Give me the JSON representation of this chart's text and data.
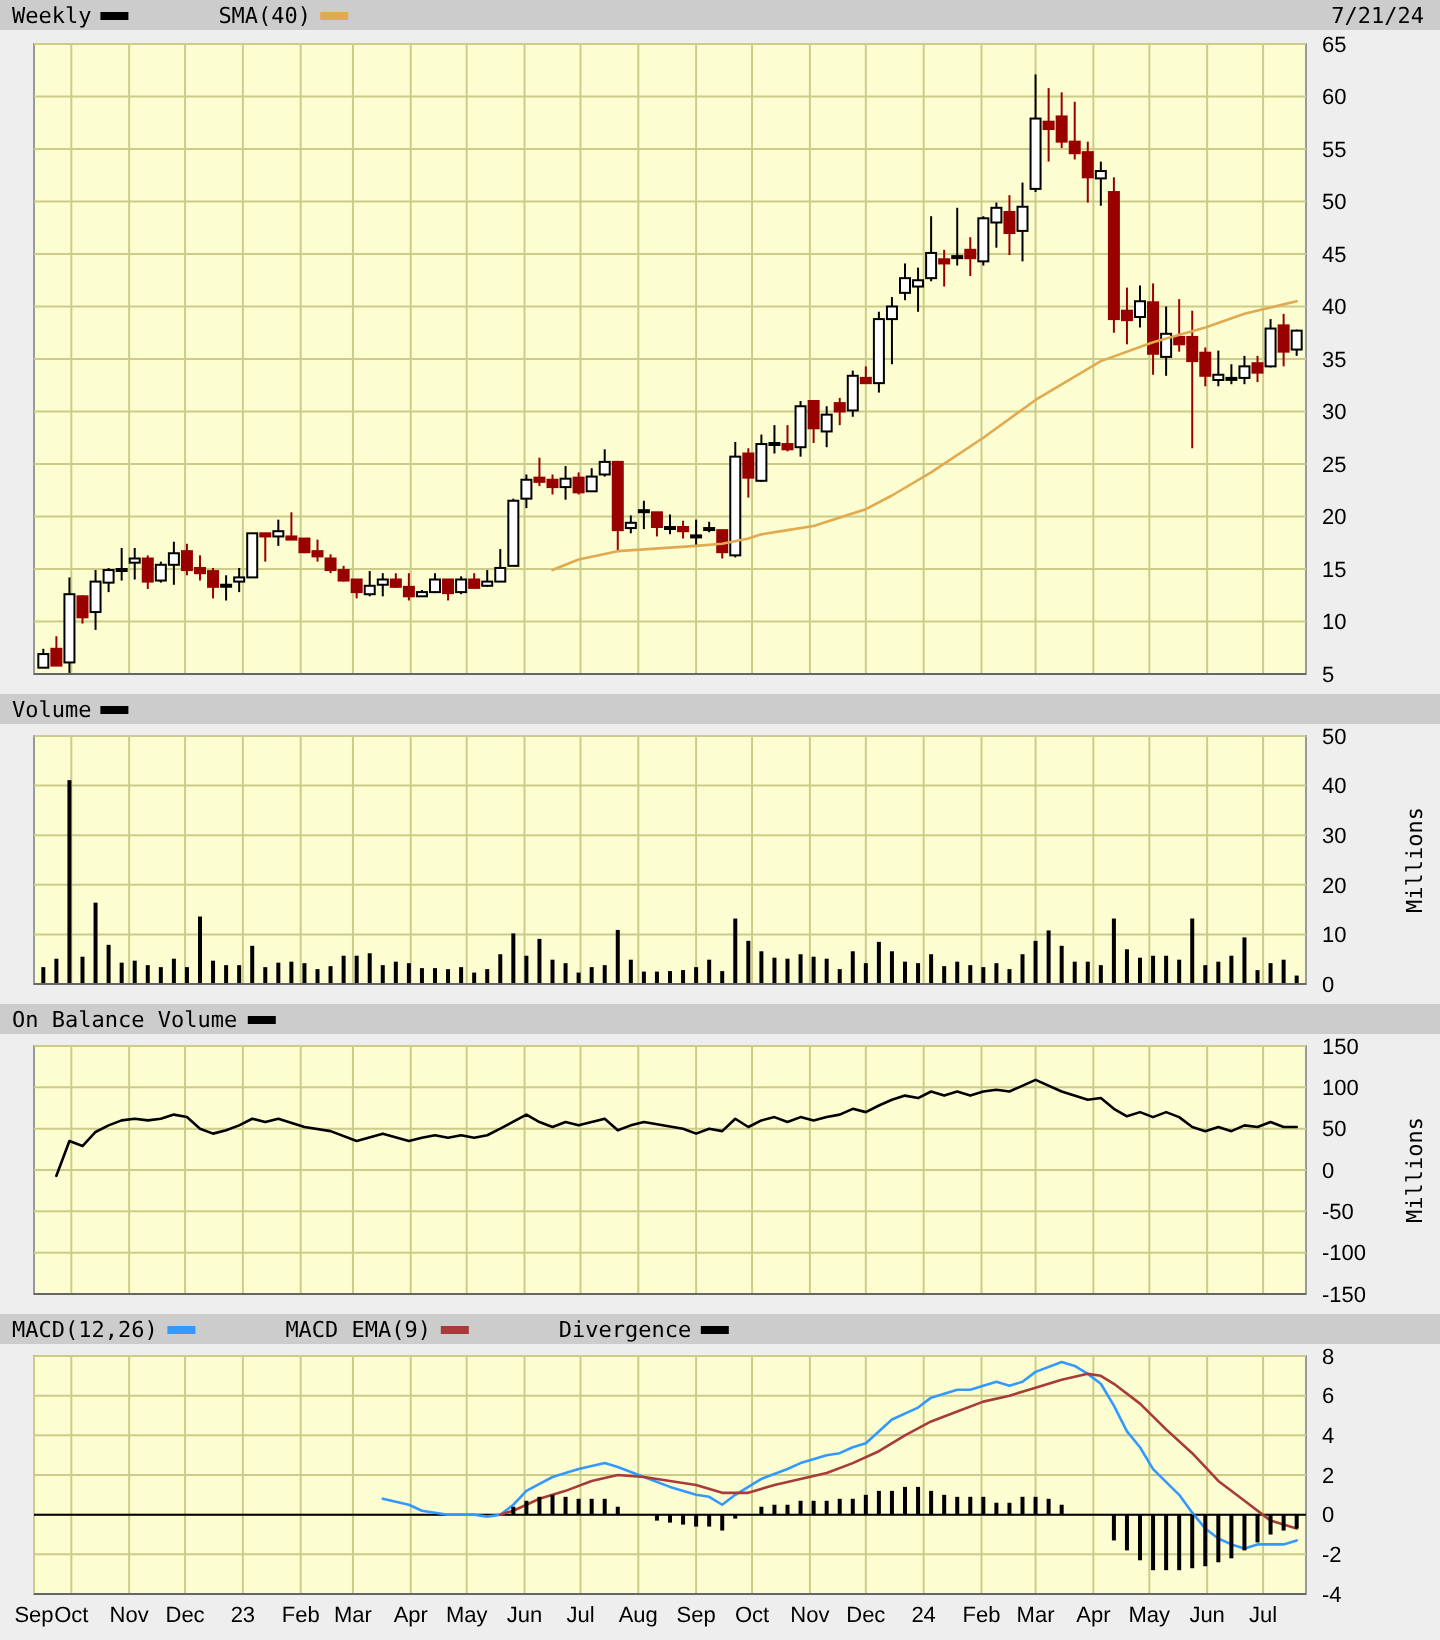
{
  "chart_data": [
    {
      "type": "candlestick",
      "legend": "top left",
      "grid": true,
      "tick_labels": "y",
      "annotations": [
        "7/21/24"
      ],
      "x": [
        "2022-09-16",
        "2022-09-23",
        "2022-09-30",
        "2022-10-07",
        "2022-10-14",
        "2022-10-21",
        "2022-10-28",
        "2022-11-04",
        "2022-11-11",
        "2022-11-18",
        "2022-11-25",
        "2022-12-02",
        "2022-12-09",
        "2022-12-16",
        "2022-12-23",
        "2022-12-30",
        "2023-01-06",
        "2023-01-13",
        "2023-01-20",
        "2023-01-27",
        "2023-02-03",
        "2023-02-10",
        "2023-02-17",
        "2023-02-24",
        "2023-03-03",
        "2023-03-10",
        "2023-03-17",
        "2023-03-24",
        "2023-03-31",
        "2023-04-07",
        "2023-04-14",
        "2023-04-21",
        "2023-04-28",
        "2023-05-05",
        "2023-05-12",
        "2023-05-19",
        "2023-05-26",
        "2023-06-02",
        "2023-06-09",
        "2023-06-16",
        "2023-06-23",
        "2023-06-30",
        "2023-07-07",
        "2023-07-14",
        "2023-07-21",
        "2023-07-28",
        "2023-08-04",
        "2023-08-11",
        "2023-08-18",
        "2023-08-25",
        "2023-09-01",
        "2023-09-08",
        "2023-09-15",
        "2023-09-22",
        "2023-09-29",
        "2023-10-06",
        "2023-10-13",
        "2023-10-20",
        "2023-10-27",
        "2023-11-03",
        "2023-11-10",
        "2023-11-17",
        "2023-11-24",
        "2023-12-01",
        "2023-12-08",
        "2023-12-15",
        "2023-12-22",
        "2023-12-29",
        "2024-01-05",
        "2024-01-12",
        "2024-01-19",
        "2024-01-26",
        "2024-02-02",
        "2024-02-09",
        "2024-02-16",
        "2024-02-23",
        "2024-03-01",
        "2024-03-08",
        "2024-03-15",
        "2024-03-22",
        "2024-03-29",
        "2024-04-05",
        "2024-04-12",
        "2024-04-19",
        "2024-04-26",
        "2024-05-03",
        "2024-05-10",
        "2024-05-17",
        "2024-05-24",
        "2024-05-31",
        "2024-06-07",
        "2024-06-14",
        "2024-06-21",
        "2024-06-28",
        "2024-07-05",
        "2024-07-12",
        "2024-07-19"
      ],
      "xlim": [
        "2022-09-11",
        "2024-07-24"
      ],
      "xticks": [
        {
          "value": "2022-10-01",
          "label": null
        },
        {
          "value": "2022-11-01",
          "label": null
        },
        {
          "value": "2022-12-01",
          "label": null
        },
        {
          "value": "2023-01-01",
          "label": null
        },
        {
          "value": "2023-02-01",
          "label": null
        },
        {
          "value": "2023-03-01",
          "label": null
        },
        {
          "value": "2023-04-01",
          "label": null
        },
        {
          "value": "2023-05-01",
          "label": null
        },
        {
          "value": "2023-06-01",
          "label": null
        },
        {
          "value": "2023-07-01",
          "label": null
        },
        {
          "value": "2023-08-01",
          "label": null
        },
        {
          "value": "2023-09-01",
          "label": null
        },
        {
          "value": "2023-10-01",
          "label": null
        },
        {
          "value": "2023-11-01",
          "label": null
        },
        {
          "value": "2023-12-01",
          "label": null
        },
        {
          "value": "2024-01-01",
          "label": null
        },
        {
          "value": "2024-02-01",
          "label": null
        },
        {
          "value": "2024-03-01",
          "label": null
        },
        {
          "value": "2024-04-01",
          "label": null
        },
        {
          "value": "2024-05-01",
          "label": null
        },
        {
          "value": "2024-06-01",
          "label": null
        },
        {
          "value": "2024-07-01",
          "label": null
        }
      ],
      "ylim": [
        5,
        65
      ],
      "yticks": [
        5,
        10,
        15,
        20,
        25,
        30,
        35,
        40,
        45,
        50,
        55,
        60,
        65
      ],
      "series": [
        {
          "name": "Weekly",
          "color": "#000000",
          "colors": [
            "#000000",
            "#990000",
            "#000000",
            "#990000",
            "#000000",
            "#000000",
            "#000000",
            "#000000",
            "#990000",
            "#000000",
            "#000000",
            "#990000",
            "#990000",
            "#990000",
            "#000000",
            "#000000",
            "#000000",
            "#990000",
            "#000000",
            "#990000",
            "#990000",
            "#990000",
            "#990000",
            "#990000",
            "#990000",
            "#000000",
            "#000000",
            "#990000",
            "#990000",
            "#000000",
            "#000000",
            "#990000",
            "#000000",
            "#990000",
            "#000000",
            "#000000",
            "#000000",
            "#000000",
            "#990000",
            "#990000",
            "#000000",
            "#990000",
            "#000000",
            "#000000",
            "#990000",
            "#000000",
            "#000000",
            "#990000",
            "#000000",
            "#990000",
            "#000000",
            "#000000",
            "#990000",
            "#000000",
            "#990000",
            "#000000",
            "#000000",
            "#990000",
            "#000000",
            "#990000",
            "#000000",
            "#990000",
            "#000000",
            "#990000",
            "#000000",
            "#000000",
            "#000000",
            "#000000",
            "#000000",
            "#990000",
            "#000000",
            "#990000",
            "#000000",
            "#000000",
            "#990000",
            "#000000",
            "#000000",
            "#990000",
            "#990000",
            "#990000",
            "#990000",
            "#000000",
            "#990000",
            "#990000",
            "#000000",
            "#990000",
            "#000000",
            "#990000",
            "#990000",
            "#990000",
            "#000000",
            "#000000",
            "#000000",
            "#990000",
            "#000000",
            "#990000",
            "#000000"
          ],
          "ohlc": [
            [
              5.6,
              7.4,
              5.6,
              6.9
            ],
            [
              7.4,
              8.6,
              5.8,
              5.8
            ],
            [
              6.1,
              14.2,
              5.1,
              12.6
            ],
            [
              12.4,
              12.5,
              9.8,
              10.4
            ],
            [
              10.9,
              14.9,
              9.2,
              13.8
            ],
            [
              13.7,
              15.1,
              12.8,
              14.9
            ],
            [
              14.9,
              17.0,
              13.9,
              15.0
            ],
            [
              15.6,
              17.0,
              14.0,
              16.0
            ],
            [
              16.0,
              16.3,
              13.1,
              13.8
            ],
            [
              13.9,
              15.7,
              13.7,
              15.4
            ],
            [
              15.4,
              17.6,
              13.5,
              16.5
            ],
            [
              16.7,
              17.4,
              14.4,
              14.9
            ],
            [
              15.1,
              16.3,
              13.9,
              14.6
            ],
            [
              14.8,
              15.1,
              12.2,
              13.3
            ],
            [
              13.5,
              14.4,
              12.0,
              13.5
            ],
            [
              13.8,
              15.1,
              12.8,
              14.2
            ],
            [
              14.2,
              18.4,
              14.2,
              18.4
            ],
            [
              18.4,
              18.4,
              15.7,
              18.1
            ],
            [
              18.1,
              19.7,
              17.2,
              18.6
            ],
            [
              18.1,
              20.4,
              17.8,
              17.8
            ],
            [
              17.9,
              17.9,
              16.5,
              16.6
            ],
            [
              16.7,
              17.8,
              15.7,
              16.2
            ],
            [
              16.0,
              16.4,
              14.6,
              14.9
            ],
            [
              14.9,
              15.3,
              13.8,
              13.9
            ],
            [
              14.0,
              14.0,
              12.2,
              12.8
            ],
            [
              12.6,
              14.8,
              12.4,
              13.4
            ],
            [
              13.5,
              14.6,
              12.4,
              14.0
            ],
            [
              14.0,
              14.6,
              13.2,
              13.3
            ],
            [
              13.3,
              14.6,
              12.0,
              12.4
            ],
            [
              12.4,
              13.0,
              12.4,
              12.8
            ],
            [
              12.8,
              14.6,
              12.7,
              14.0
            ],
            [
              14.0,
              14.0,
              12.0,
              12.7
            ],
            [
              12.8,
              14.3,
              12.6,
              14.0
            ],
            [
              14.0,
              14.6,
              13.2,
              13.2
            ],
            [
              13.4,
              14.9,
              13.3,
              13.8
            ],
            [
              13.8,
              16.9,
              13.8,
              15.1
            ],
            [
              15.3,
              21.7,
              15.3,
              21.5
            ],
            [
              21.7,
              24.0,
              20.8,
              23.5
            ],
            [
              23.7,
              25.6,
              22.9,
              23.3
            ],
            [
              23.5,
              24.0,
              22.1,
              22.8
            ],
            [
              22.8,
              24.8,
              21.6,
              23.6
            ],
            [
              23.7,
              24.2,
              22.1,
              22.3
            ],
            [
              22.4,
              24.6,
              22.4,
              23.8
            ],
            [
              24.0,
              26.4,
              23.8,
              25.2
            ],
            [
              25.2,
              25.3,
              16.7,
              18.7
            ],
            [
              18.9,
              20.1,
              18.4,
              19.4
            ],
            [
              20.5,
              21.5,
              18.8,
              20.6
            ],
            [
              20.4,
              20.4,
              18.1,
              19.0
            ],
            [
              19.0,
              20.2,
              18.3,
              19.0
            ],
            [
              19.0,
              19.6,
              17.9,
              18.6
            ],
            [
              18.1,
              19.7,
              17.1,
              18.2
            ],
            [
              18.8,
              19.5,
              18.5,
              18.9
            ],
            [
              18.7,
              18.7,
              16.0,
              16.6
            ],
            [
              16.3,
              27.1,
              16.1,
              25.7
            ],
            [
              26.0,
              26.5,
              21.8,
              23.7
            ],
            [
              23.4,
              27.8,
              23.3,
              26.9
            ],
            [
              27.0,
              28.7,
              26.0,
              27.0
            ],
            [
              26.9,
              28.7,
              26.2,
              26.4
            ],
            [
              26.6,
              31.0,
              25.7,
              30.5
            ],
            [
              31.0,
              31.0,
              27.0,
              28.4
            ],
            [
              28.1,
              30.5,
              26.6,
              29.7
            ],
            [
              30.8,
              31.3,
              28.7,
              30.0
            ],
            [
              30.1,
              33.9,
              29.5,
              33.4
            ],
            [
              33.2,
              34.3,
              32.7,
              32.7
            ],
            [
              32.7,
              39.5,
              31.8,
              38.8
            ],
            [
              38.8,
              40.9,
              34.5,
              40.0
            ],
            [
              41.3,
              44.1,
              40.6,
              42.7
            ],
            [
              41.9,
              43.7,
              39.5,
              42.5
            ],
            [
              42.7,
              48.6,
              42.4,
              45.1
            ],
            [
              44.5,
              45.4,
              41.9,
              44.1
            ],
            [
              44.8,
              49.4,
              43.9,
              44.8
            ],
            [
              45.4,
              46.6,
              42.9,
              44.6
            ],
            [
              44.3,
              48.6,
              43.9,
              48.4
            ],
            [
              48.0,
              49.9,
              45.6,
              49.4
            ],
            [
              49.0,
              50.6,
              44.9,
              47.0
            ],
            [
              47.2,
              51.8,
              44.3,
              49.5
            ],
            [
              51.2,
              62.1,
              50.9,
              57.9
            ],
            [
              57.6,
              60.8,
              53.8,
              56.9
            ],
            [
              58.1,
              60.4,
              55.1,
              55.7
            ],
            [
              55.7,
              59.5,
              54.0,
              54.6
            ],
            [
              54.7,
              55.7,
              49.9,
              52.3
            ],
            [
              52.2,
              53.8,
              49.6,
              52.9
            ],
            [
              50.9,
              52.3,
              37.5,
              38.8
            ],
            [
              39.6,
              41.8,
              36.4,
              38.7
            ],
            [
              39.0,
              42.0,
              38.0,
              40.5
            ],
            [
              40.4,
              42.2,
              33.5,
              35.5
            ],
            [
              35.2,
              40.0,
              33.4,
              37.4
            ],
            [
              37.1,
              40.7,
              35.7,
              36.4
            ],
            [
              37.1,
              39.6,
              26.5,
              34.8
            ],
            [
              35.6,
              36.1,
              32.4,
              33.4
            ],
            [
              33.0,
              35.8,
              32.4,
              33.5
            ],
            [
              33.2,
              34.5,
              32.6,
              33.2
            ],
            [
              33.2,
              35.3,
              32.6,
              34.3
            ],
            [
              34.6,
              35.3,
              32.8,
              33.7
            ],
            [
              34.3,
              38.8,
              34.2,
              37.9
            ],
            [
              38.2,
              39.3,
              34.3,
              35.7
            ],
            [
              35.9,
              37.8,
              35.3,
              37.7
            ]
          ]
        },
        {
          "name": "SMA(40)",
          "type": "line",
          "color": "#e0aa50",
          "x": [
            "2023-06-16",
            "2023-06-30",
            "2023-07-21",
            "2023-09-01",
            "2023-09-15",
            "2023-09-29",
            "2023-10-06",
            "2023-10-20",
            "2023-11-03",
            "2023-12-01",
            "2023-12-15",
            "2024-01-05",
            "2024-02-02",
            "2024-03-01",
            "2024-04-05",
            "2024-05-03",
            "2024-05-31",
            "2024-06-21",
            "2024-07-19"
          ],
          "values": [
            14.9,
            15.9,
            16.7,
            17.2,
            17.4,
            17.9,
            18.3,
            18.7,
            19.1,
            20.7,
            22.0,
            24.2,
            27.5,
            31.1,
            34.8,
            36.6,
            38.0,
            39.3,
            40.5
          ]
        }
      ]
    },
    {
      "type": "bar",
      "legend": "top left",
      "grid": true,
      "tick_labels": "y",
      "ylabel": "Millions",
      "x": [
        "2022-09-16",
        "2022-09-23",
        "2022-09-30",
        "2022-10-07",
        "2022-10-14",
        "2022-10-21",
        "2022-10-28",
        "2022-11-04",
        "2022-11-11",
        "2022-11-18",
        "2022-11-25",
        "2022-12-02",
        "2022-12-09",
        "2022-12-16",
        "2022-12-23",
        "2022-12-30",
        "2023-01-06",
        "2023-01-13",
        "2023-01-20",
        "2023-01-27",
        "2023-02-03",
        "2023-02-10",
        "2023-02-17",
        "2023-02-24",
        "2023-03-03",
        "2023-03-10",
        "2023-03-17",
        "2023-03-24",
        "2023-03-31",
        "2023-04-07",
        "2023-04-14",
        "2023-04-21",
        "2023-04-28",
        "2023-05-05",
        "2023-05-12",
        "2023-05-19",
        "2023-05-26",
        "2023-06-02",
        "2023-06-09",
        "2023-06-16",
        "2023-06-23",
        "2023-06-30",
        "2023-07-07",
        "2023-07-14",
        "2023-07-21",
        "2023-07-28",
        "2023-08-04",
        "2023-08-11",
        "2023-08-18",
        "2023-08-25",
        "2023-09-01",
        "2023-09-08",
        "2023-09-15",
        "2023-09-22",
        "2023-09-29",
        "2023-10-06",
        "2023-10-13",
        "2023-10-20",
        "2023-10-27",
        "2023-11-03",
        "2023-11-10",
        "2023-11-17",
        "2023-11-24",
        "2023-12-01",
        "2023-12-08",
        "2023-12-15",
        "2023-12-22",
        "2023-12-29",
        "2024-01-05",
        "2024-01-12",
        "2024-01-19",
        "2024-01-26",
        "2024-02-02",
        "2024-02-09",
        "2024-02-16",
        "2024-02-23",
        "2024-03-01",
        "2024-03-08",
        "2024-03-15",
        "2024-03-22",
        "2024-03-29",
        "2024-04-05",
        "2024-04-12",
        "2024-04-19",
        "2024-04-26",
        "2024-05-03",
        "2024-05-10",
        "2024-05-17",
        "2024-05-24",
        "2024-05-31",
        "2024-06-07",
        "2024-06-14",
        "2024-06-21",
        "2024-06-28",
        "2024-07-05",
        "2024-07-12",
        "2024-07-19"
      ],
      "xlim": [
        "2022-09-11",
        "2024-07-24"
      ],
      "xticks": [
        {
          "value": "2022-10-01",
          "label": null
        },
        {
          "value": "2022-11-01",
          "label": null
        },
        {
          "value": "2022-12-01",
          "label": null
        },
        {
          "value": "2023-01-01",
          "label": null
        },
        {
          "value": "2023-02-01",
          "label": null
        },
        {
          "value": "2023-03-01",
          "label": null
        },
        {
          "value": "2023-04-01",
          "label": null
        },
        {
          "value": "2023-05-01",
          "label": null
        },
        {
          "value": "2023-06-01",
          "label": null
        },
        {
          "value": "2023-07-01",
          "label": null
        },
        {
          "value": "2023-08-01",
          "label": null
        },
        {
          "value": "2023-09-01",
          "label": null
        },
        {
          "value": "2023-10-01",
          "label": null
        },
        {
          "value": "2023-11-01",
          "label": null
        },
        {
          "value": "2023-12-01",
          "label": null
        },
        {
          "value": "2024-01-01",
          "label": null
        },
        {
          "value": "2024-02-01",
          "label": null
        },
        {
          "value": "2024-03-01",
          "label": null
        },
        {
          "value": "2024-04-01",
          "label": null
        },
        {
          "value": "2024-05-01",
          "label": null
        },
        {
          "value": "2024-06-01",
          "label": null
        },
        {
          "value": "2024-07-01",
          "label": null
        }
      ],
      "ylim": [
        0,
        50
      ],
      "yticks": [
        0,
        10,
        20,
        30,
        40,
        50
      ],
      "series": [
        {
          "name": "Volume",
          "color": "#000000",
          "values": [
            3.4,
            5.1,
            41.1,
            5.5,
            16.4,
            7.9,
            4.3,
            4.7,
            3.8,
            3.4,
            5.1,
            3.4,
            13.6,
            4.7,
            3.8,
            3.8,
            7.7,
            3.4,
            4.3,
            4.5,
            4.2,
            3.0,
            3.6,
            5.7,
            5.7,
            6.2,
            3.8,
            4.5,
            4.2,
            3.2,
            3.2,
            3.0,
            3.4,
            2.3,
            3.0,
            6.0,
            10.2,
            5.7,
            9.1,
            4.9,
            4.2,
            2.3,
            3.4,
            3.8,
            10.9,
            4.9,
            2.5,
            2.5,
            2.6,
            2.8,
            3.4,
            4.9,
            2.6,
            13.2,
            8.7,
            6.6,
            5.3,
            5.1,
            6.0,
            5.5,
            5.1,
            3.0,
            6.6,
            4.2,
            8.5,
            6.6,
            4.5,
            4.2,
            6.0,
            3.6,
            4.5,
            3.8,
            3.4,
            4.2,
            3.0,
            6.0,
            8.7,
            10.8,
            7.7,
            4.5,
            4.5,
            3.8,
            13.2,
            7.0,
            5.3,
            5.7,
            5.7,
            4.9,
            13.2,
            3.8,
            4.5,
            5.7,
            9.4,
            2.8,
            4.2,
            4.9,
            1.7
          ]
        }
      ]
    },
    {
      "type": "line",
      "legend": "top left",
      "grid": true,
      "tick_labels": "y",
      "ylabel": "Millions",
      "xlim": [
        "2022-09-11",
        "2024-07-24"
      ],
      "xticks": [
        {
          "value": "2022-10-01",
          "label": null
        },
        {
          "value": "2022-11-01",
          "label": null
        },
        {
          "value": "2022-12-01",
          "label": null
        },
        {
          "value": "2023-01-01",
          "label": null
        },
        {
          "value": "2023-02-01",
          "label": null
        },
        {
          "value": "2023-03-01",
          "label": null
        },
        {
          "value": "2023-04-01",
          "label": null
        },
        {
          "value": "2023-05-01",
          "label": null
        },
        {
          "value": "2023-06-01",
          "label": null
        },
        {
          "value": "2023-07-01",
          "label": null
        },
        {
          "value": "2023-08-01",
          "label": null
        },
        {
          "value": "2023-09-01",
          "label": null
        },
        {
          "value": "2023-10-01",
          "label": null
        },
        {
          "value": "2023-11-01",
          "label": null
        },
        {
          "value": "2023-12-01",
          "label": null
        },
        {
          "value": "2024-01-01",
          "label": null
        },
        {
          "value": "2024-02-01",
          "label": null
        },
        {
          "value": "2024-03-01",
          "label": null
        },
        {
          "value": "2024-04-01",
          "label": null
        },
        {
          "value": "2024-05-01",
          "label": null
        },
        {
          "value": "2024-06-01",
          "label": null
        },
        {
          "value": "2024-07-01",
          "label": null
        }
      ],
      "ylim": [
        -150,
        150
      ],
      "yticks": [
        -150,
        -100,
        -50,
        0,
        50,
        100,
        150
      ],
      "series": [
        {
          "name": "On Balance Volume",
          "color": "#000000",
          "x": [
            "2022-09-23",
            "2022-09-30",
            "2022-10-07",
            "2022-10-14",
            "2022-10-21",
            "2022-10-28",
            "2022-11-04",
            "2022-11-11",
            "2022-11-18",
            "2022-11-25",
            "2022-12-02",
            "2022-12-09",
            "2022-12-16",
            "2022-12-23",
            "2022-12-30",
            "2023-01-06",
            "2023-01-13",
            "2023-01-20",
            "2023-02-03",
            "2023-02-17",
            "2023-03-03",
            "2023-03-17",
            "2023-03-31",
            "2023-04-07",
            "2023-04-14",
            "2023-04-21",
            "2023-04-28",
            "2023-05-05",
            "2023-05-12",
            "2023-05-19",
            "2023-06-02",
            "2023-06-09",
            "2023-06-16",
            "2023-06-23",
            "2023-06-30",
            "2023-07-14",
            "2023-07-21",
            "2023-07-28",
            "2023-08-04",
            "2023-08-25",
            "2023-09-01",
            "2023-09-08",
            "2023-09-15",
            "2023-09-22",
            "2023-09-29",
            "2023-10-06",
            "2023-10-13",
            "2023-10-20",
            "2023-10-27",
            "2023-11-03",
            "2023-11-10",
            "2023-11-17",
            "2023-11-24",
            "2023-12-01",
            "2023-12-08",
            "2023-12-15",
            "2023-12-22",
            "2023-12-29",
            "2024-01-05",
            "2024-01-12",
            "2024-01-19",
            "2024-01-26",
            "2024-02-02",
            "2024-02-09",
            "2024-02-16",
            "2024-03-01",
            "2024-03-15",
            "2024-03-29",
            "2024-04-05",
            "2024-04-12",
            "2024-04-19",
            "2024-04-26",
            "2024-05-03",
            "2024-05-10",
            "2024-05-17",
            "2024-05-24",
            "2024-05-31",
            "2024-06-07",
            "2024-06-14",
            "2024-06-21",
            "2024-06-28",
            "2024-07-05",
            "2024-07-12",
            "2024-07-19"
          ],
          "values": [
            -7,
            35,
            29,
            46,
            54,
            60,
            62,
            60,
            62,
            67,
            64,
            50,
            44,
            48,
            54,
            62,
            58,
            62,
            52,
            47,
            35,
            44,
            35,
            39,
            42,
            39,
            42,
            39,
            42,
            50,
            67,
            58,
            52,
            58,
            54,
            62,
            48,
            54,
            58,
            50,
            44,
            50,
            47,
            62,
            52,
            60,
            64,
            58,
            64,
            60,
            64,
            67,
            74,
            70,
            78,
            85,
            90,
            87,
            95,
            90,
            95,
            90,
            95,
            97,
            95,
            109,
            95,
            85,
            87,
            74,
            65,
            70,
            64,
            70,
            64,
            52,
            47,
            52,
            47,
            54,
            52,
            58,
            52,
            52
          ]
        }
      ]
    },
    {
      "type": "line",
      "legend": "top left",
      "grid": true,
      "ref_lines": [
        {
          "axis": "y",
          "value": 0,
          "color": "#000000"
        }
      ],
      "xlim": [
        "2022-09-11",
        "2024-07-24"
      ],
      "xticks": [
        {
          "value": "2022-09-11",
          "label": "Sep"
        },
        {
          "value": "2022-10-01",
          "label": "Oct"
        },
        {
          "value": "2022-11-01",
          "label": "Nov"
        },
        {
          "value": "2022-12-01",
          "label": "Dec"
        },
        {
          "value": "2023-01-01",
          "label": "23"
        },
        {
          "value": "2023-02-01",
          "label": "Feb"
        },
        {
          "value": "2023-03-01",
          "label": "Mar"
        },
        {
          "value": "2023-04-01",
          "label": "Apr"
        },
        {
          "value": "2023-05-01",
          "label": "May"
        },
        {
          "value": "2023-06-01",
          "label": "Jun"
        },
        {
          "value": "2023-07-01",
          "label": "Jul"
        },
        {
          "value": "2023-08-01",
          "label": "Aug"
        },
        {
          "value": "2023-09-01",
          "label": "Sep"
        },
        {
          "value": "2023-10-01",
          "label": "Oct"
        },
        {
          "value": "2023-11-01",
          "label": "Nov"
        },
        {
          "value": "2023-12-01",
          "label": "Dec"
        },
        {
          "value": "2024-01-01",
          "label": "24"
        },
        {
          "value": "2024-02-01",
          "label": "Feb"
        },
        {
          "value": "2024-03-01",
          "label": "Mar"
        },
        {
          "value": "2024-04-01",
          "label": "Apr"
        },
        {
          "value": "2024-05-01",
          "label": "May"
        },
        {
          "value": "2024-06-01",
          "label": "Jun"
        },
        {
          "value": "2024-07-01",
          "label": "Jul"
        }
      ],
      "ylim": [
        -4,
        8
      ],
      "yticks": [
        -4,
        -2,
        0,
        2,
        4,
        6,
        8
      ],
      "series": [
        {
          "name": "MACD(12,26)",
          "color": "#3399ff",
          "x": [
            "2023-03-17",
            "2023-03-31",
            "2023-04-07",
            "2023-04-14",
            "2023-04-21",
            "2023-05-05",
            "2023-05-12",
            "2023-05-19",
            "2023-05-26",
            "2023-06-02",
            "2023-06-16",
            "2023-06-23",
            "2023-06-30",
            "2023-07-14",
            "2023-07-21",
            "2023-08-04",
            "2023-08-18",
            "2023-09-01",
            "2023-09-08",
            "2023-09-15",
            "2023-09-22",
            "2023-10-06",
            "2023-10-20",
            "2023-10-27",
            "2023-11-10",
            "2023-11-17",
            "2023-11-24",
            "2023-12-01",
            "2023-12-15",
            "2023-12-29",
            "2024-01-05",
            "2024-01-19",
            "2024-01-26",
            "2024-02-09",
            "2024-02-16",
            "2024-02-23",
            "2024-03-01",
            "2024-03-15",
            "2024-03-22",
            "2024-03-29",
            "2024-04-05",
            "2024-04-12",
            "2024-04-19",
            "2024-04-26",
            "2024-05-03",
            "2024-05-17",
            "2024-05-24",
            "2024-05-31",
            "2024-06-07",
            "2024-06-14",
            "2024-06-21",
            "2024-06-28",
            "2024-07-12",
            "2024-07-19"
          ],
          "values": [
            0.8,
            0.5,
            0.2,
            0.1,
            0,
            0,
            -0.1,
            0,
            0.5,
            1.2,
            1.9,
            2.1,
            2.3,
            2.6,
            2.4,
            1.9,
            1.4,
            1.0,
            0.9,
            0.5,
            1.0,
            1.8,
            2.3,
            2.6,
            3.0,
            3.1,
            3.4,
            3.6,
            4.8,
            5.4,
            5.9,
            6.3,
            6.3,
            6.7,
            6.5,
            6.7,
            7.2,
            7.7,
            7.5,
            7.1,
            6.6,
            5.5,
            4.2,
            3.4,
            2.3,
            1.0,
            0.1,
            -0.7,
            -1.2,
            -1.5,
            -1.7,
            -1.5,
            -1.5,
            -1.3
          ]
        },
        {
          "name": "MACD EMA(9)",
          "color": "#a83a3a",
          "x": [
            "2023-05-19",
            "2023-05-26",
            "2023-06-09",
            "2023-06-23",
            "2023-07-07",
            "2023-07-21",
            "2023-08-04",
            "2023-08-18",
            "2023-09-01",
            "2023-09-15",
            "2023-09-29",
            "2023-10-13",
            "2023-10-27",
            "2023-11-10",
            "2023-11-24",
            "2023-12-08",
            "2023-12-22",
            "2024-01-05",
            "2024-01-19",
            "2024-02-02",
            "2024-02-16",
            "2024-03-01",
            "2024-03-15",
            "2024-03-29",
            "2024-04-05",
            "2024-04-12",
            "2024-04-26",
            "2024-05-10",
            "2024-05-24",
            "2024-06-07",
            "2024-06-21",
            "2024-07-05",
            "2024-07-19"
          ],
          "values": [
            0,
            0.2,
            0.8,
            1.2,
            1.7,
            2.0,
            1.9,
            1.7,
            1.5,
            1.1,
            1.1,
            1.5,
            1.8,
            2.1,
            2.6,
            3.2,
            4.0,
            4.7,
            5.2,
            5.7,
            6.0,
            6.4,
            6.8,
            7.1,
            7.0,
            6.6,
            5.6,
            4.3,
            3.1,
            1.7,
            0.7,
            -0.3,
            -0.7
          ]
        },
        {
          "name": "Divergence",
          "type": "bar",
          "color": "#000000",
          "x": [
            "2023-05-26",
            "2023-06-02",
            "2023-06-09",
            "2023-06-16",
            "2023-06-23",
            "2023-06-30",
            "2023-07-07",
            "2023-07-14",
            "2023-07-21",
            "2023-08-11",
            "2023-08-18",
            "2023-08-25",
            "2023-09-01",
            "2023-09-08",
            "2023-09-15",
            "2023-09-22",
            "2023-10-06",
            "2023-10-13",
            "2023-10-20",
            "2023-10-27",
            "2023-11-03",
            "2023-11-10",
            "2023-11-17",
            "2023-11-24",
            "2023-12-01",
            "2023-12-08",
            "2023-12-15",
            "2023-12-22",
            "2023-12-29",
            "2024-01-05",
            "2024-01-12",
            "2024-01-19",
            "2024-01-26",
            "2024-02-02",
            "2024-02-09",
            "2024-02-16",
            "2024-02-23",
            "2024-03-01",
            "2024-03-08",
            "2024-03-15",
            "2024-04-12",
            "2024-04-19",
            "2024-04-26",
            "2024-05-03",
            "2024-05-10",
            "2024-05-17",
            "2024-05-24",
            "2024-05-31",
            "2024-06-07",
            "2024-06-14",
            "2024-06-21",
            "2024-06-28",
            "2024-07-05",
            "2024-07-12",
            "2024-07-19"
          ],
          "values": [
            0.4,
            0.7,
            0.9,
            1.0,
            0.9,
            0.8,
            0.8,
            0.8,
            0.4,
            -0.3,
            -0.4,
            -0.5,
            -0.6,
            -0.6,
            -0.8,
            -0.2,
            0.4,
            0.5,
            0.5,
            0.7,
            0.7,
            0.7,
            0.8,
            0.8,
            1.0,
            1.2,
            1.2,
            1.4,
            1.4,
            1.2,
            1.0,
            0.9,
            0.9,
            0.9,
            0.6,
            0.6,
            0.9,
            0.9,
            0.8,
            0.5,
            -1.3,
            -1.8,
            -2.3,
            -2.8,
            -2.8,
            -2.8,
            -2.7,
            -2.6,
            -2.4,
            -2.2,
            -1.8,
            -1.4,
            -1.0,
            -0.8,
            -0.7
          ]
        }
      ]
    }
  ]
}
